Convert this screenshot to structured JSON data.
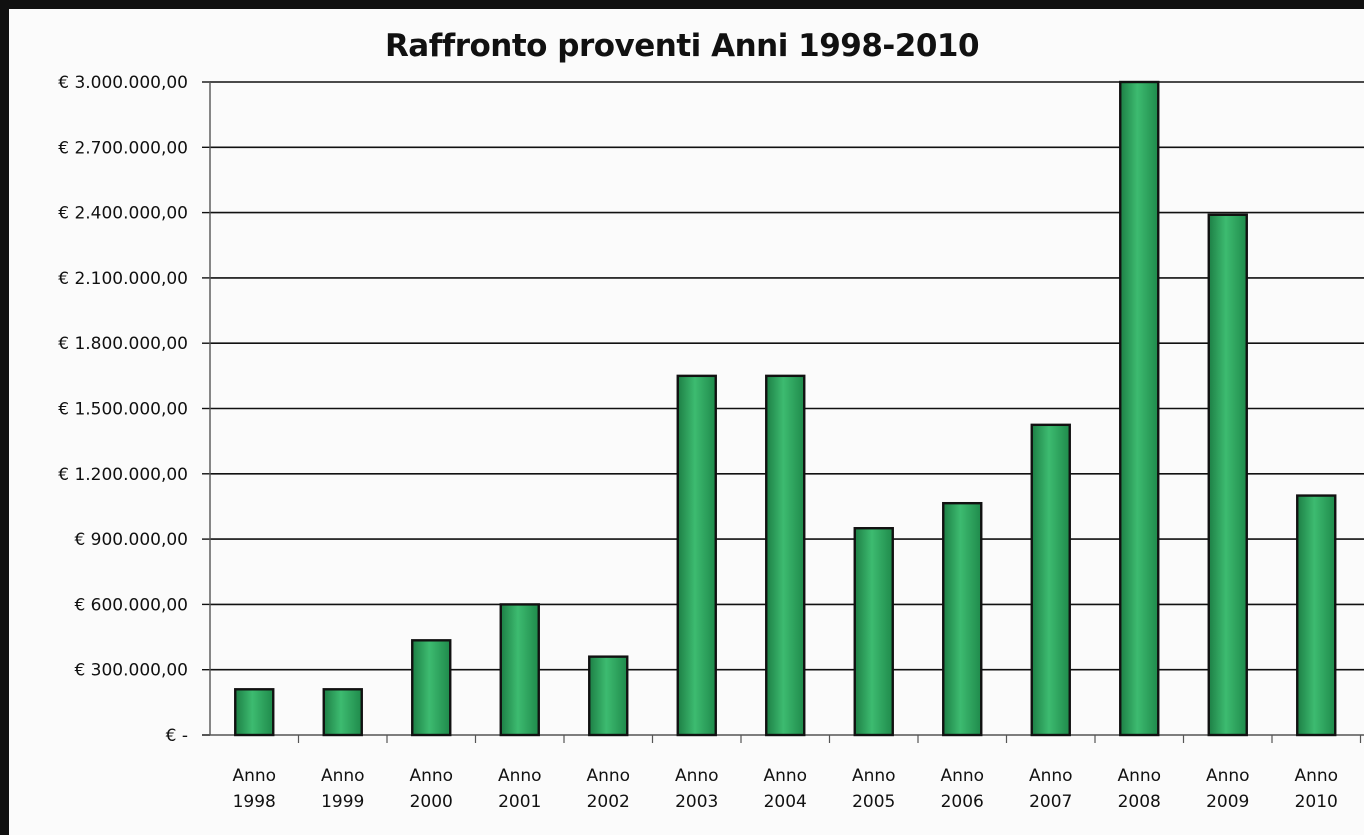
{
  "chart_data": {
    "type": "bar",
    "title": "Raffronto proventi Anni 1998-2010",
    "xlabel": "",
    "ylabel": "",
    "categories": [
      [
        "Anno",
        "1998"
      ],
      [
        "Anno",
        "1999"
      ],
      [
        "Anno",
        "2000"
      ],
      [
        "Anno",
        "2001"
      ],
      [
        "Anno",
        "2002"
      ],
      [
        "Anno",
        "2003"
      ],
      [
        "Anno",
        "2004"
      ],
      [
        "Anno",
        "2005"
      ],
      [
        "Anno",
        "2006"
      ],
      [
        "Anno",
        "2007"
      ],
      [
        "Anno",
        "2008"
      ],
      [
        "Anno",
        "2009"
      ],
      [
        "Anno",
        "2010"
      ]
    ],
    "values": [
      210000,
      210000,
      435000,
      600000,
      360000,
      1650000,
      1650000,
      950000,
      1065000,
      1425000,
      3000000,
      2390000,
      1100000
    ],
    "ylim": [
      0,
      3000000
    ],
    "yticks": [
      {
        "value": 0,
        "label": "€ -"
      },
      {
        "value": 300000,
        "label": "€ 300.000,00"
      },
      {
        "value": 600000,
        "label": "€ 600.000,00"
      },
      {
        "value": 900000,
        "label": "€ 900.000,00"
      },
      {
        "value": 1200000,
        "label": "€ 1.200.000,00"
      },
      {
        "value": 1500000,
        "label": "€ 1.500.000,00"
      },
      {
        "value": 1800000,
        "label": "€ 1.800.000,00"
      },
      {
        "value": 2100000,
        "label": "€ 2.100.000,00"
      },
      {
        "value": 2400000,
        "label": "€ 2.400.000,00"
      },
      {
        "value": 2700000,
        "label": "€ 2.700.000,00"
      },
      {
        "value": 3000000,
        "label": "€ 3.000.000,00"
      }
    ],
    "grid": true,
    "legend": "none",
    "colors": {
      "bar": "#2aa35c",
      "bar_edge": "#111111",
      "grid": "#111111"
    }
  }
}
